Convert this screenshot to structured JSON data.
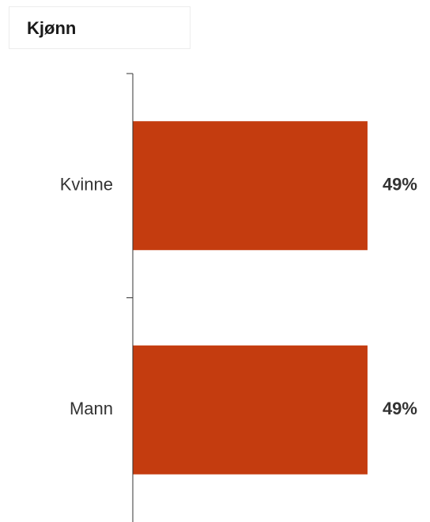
{
  "title": "Kjønn",
  "chart_data": {
    "type": "bar",
    "orientation": "horizontal",
    "title": "Kjønn",
    "categories": [
      "Kvinne",
      "Mann"
    ],
    "values": [
      49,
      49
    ],
    "value_labels": [
      "49%",
      "49%"
    ],
    "xlim": [
      0,
      100
    ],
    "xlabel": "",
    "ylabel": "",
    "grid": false,
    "bar_color": "#C43C0F",
    "axis_color": "#333333"
  }
}
